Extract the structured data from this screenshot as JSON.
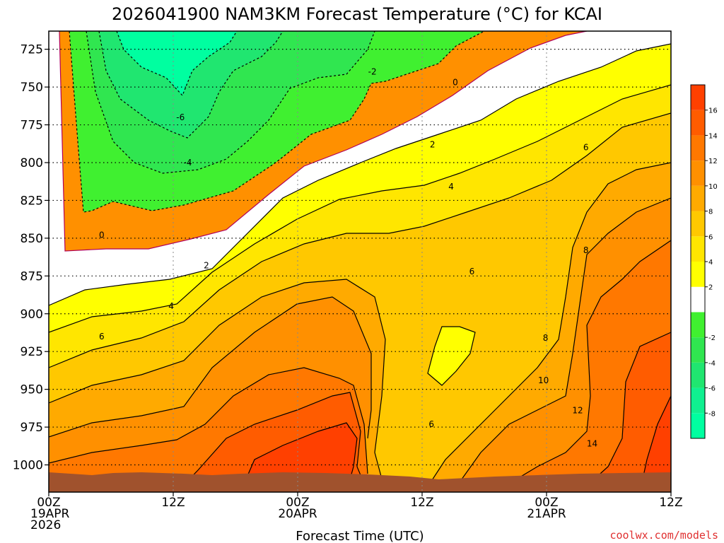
{
  "chart_data": {
    "type": "heatmap",
    "title": "2026041900 NAM3KM Forecast Temperature (°C) for KCAI",
    "xlabel": "Forecast Time (UTC)",
    "ylabel": "",
    "x_ticks": [
      {
        "hour": 0,
        "lines": [
          "00Z",
          "19APR",
          "2026"
        ]
      },
      {
        "hour": 12,
        "lines": [
          "12Z"
        ]
      },
      {
        "hour": 24,
        "lines": [
          "00Z",
          "20APR"
        ]
      },
      {
        "hour": 36,
        "lines": [
          "12Z"
        ]
      },
      {
        "hour": 48,
        "lines": [
          "00Z",
          "21APR"
        ]
      },
      {
        "hour": 60,
        "lines": [
          "12Z"
        ]
      }
    ],
    "x_range_hours": [
      0,
      60
    ],
    "y_ticks": [
      725,
      750,
      775,
      800,
      825,
      850,
      875,
      900,
      925,
      950,
      975,
      1000
    ],
    "y_range_hPa": [
      1018,
      713
    ],
    "colorbar": {
      "levels": [
        -10,
        -8,
        -6,
        -4,
        -2,
        0,
        2,
        4,
        6,
        8,
        10,
        12,
        14,
        16,
        18
      ],
      "tick_labels": [
        "-8",
        "-6",
        "-4",
        "-2",
        "2",
        "4",
        "6",
        "8",
        "10",
        "12",
        "14",
        "16"
      ],
      "colors": [
        "#00ffa0",
        "#10f090",
        "#20e670",
        "#30e650",
        "#40f030",
        "#ffffff",
        "#ffff00",
        "#ffe600",
        "#ffc800",
        "#ffaa00",
        "#ff9000",
        "#ff7800",
        "#ff5c00",
        "#ff4000"
      ]
    },
    "contour_labels": [
      {
        "text": "-6",
        "hour": 12.7,
        "hPa": 770
      },
      {
        "text": "-4",
        "hour": 13.4,
        "hPa": 800
      },
      {
        "text": "-2",
        "hour": 31.2,
        "hPa": 740
      },
      {
        "text": "0",
        "hour": 5.1,
        "hPa": 848
      },
      {
        "text": "0",
        "hour": 39.2,
        "hPa": 747
      },
      {
        "text": "2",
        "hour": 15.2,
        "hPa": 868
      },
      {
        "text": "2",
        "hour": 37.0,
        "hPa": 788
      },
      {
        "text": "4",
        "hour": 11.8,
        "hPa": 895
      },
      {
        "text": "4",
        "hour": 38.8,
        "hPa": 816
      },
      {
        "text": "6",
        "hour": 5.1,
        "hPa": 915
      },
      {
        "text": "6",
        "hour": 40.8,
        "hPa": 872
      },
      {
        "text": "6",
        "hour": 36.9,
        "hPa": 973
      },
      {
        "text": "6",
        "hour": 51.8,
        "hPa": 790
      },
      {
        "text": "8",
        "hour": 47.9,
        "hPa": 916
      },
      {
        "text": "8",
        "hour": 51.8,
        "hPa": 858
      },
      {
        "text": "10",
        "hour": 47.7,
        "hPa": 944
      },
      {
        "text": "12",
        "hour": 51.0,
        "hPa": 964
      },
      {
        "text": "14",
        "hour": 52.4,
        "hPa": 986
      }
    ],
    "ground_color": "#a0522d"
  },
  "credit": "coolwx.com/models"
}
